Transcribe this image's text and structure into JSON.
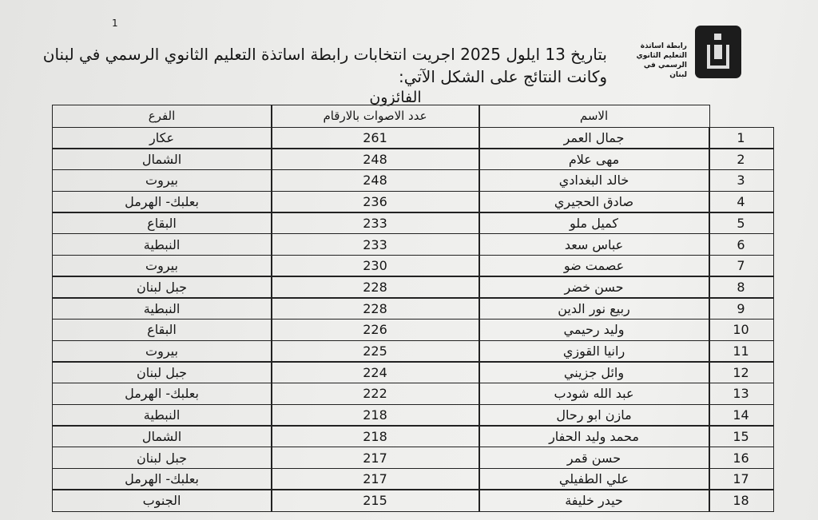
{
  "page_number": "1",
  "logo_text": [
    "رابطة اساتذة",
    "التعليم الثانوي",
    "الرسمي في لبنان"
  ],
  "heading": {
    "line1": "بتاريخ 13 ايلول 2025 اجريت انتخابات رابطة اساتذة التعليم الثانوي الرسمي في لبنان",
    "line2": "وكانت النتائج على الشكل الآتي:"
  },
  "table_title": "الفائزون",
  "table": {
    "headers": {
      "name": "الاسم",
      "votes": "عدد الاصوات بالارقام",
      "branch": "الفرع"
    },
    "rows": [
      {
        "num": "1",
        "name": "جمال العمر",
        "votes": "261",
        "branch": "عكار"
      },
      {
        "num": "2",
        "name": "مهى علام",
        "votes": "248",
        "branch": "الشمال"
      },
      {
        "num": "3",
        "name": "خالد البغدادي",
        "votes": "248",
        "branch": "بيروت"
      },
      {
        "num": "4",
        "name": "صادق الحجيري",
        "votes": "236",
        "branch": "بعلبك- الهرمل"
      },
      {
        "num": "5",
        "name": "كميل ملو",
        "votes": "233",
        "branch": "البقاع"
      },
      {
        "num": "6",
        "name": "عباس سعد",
        "votes": "233",
        "branch": "النبطية"
      },
      {
        "num": "7",
        "name": "عصمت ضو",
        "votes": "230",
        "branch": "بيروت"
      },
      {
        "num": "8",
        "name": "حسن خضر",
        "votes": "228",
        "branch": "جبل لبنان"
      },
      {
        "num": "9",
        "name": "ربيع نور الدين",
        "votes": "228",
        "branch": "النبطية"
      },
      {
        "num": "10",
        "name": "وليد رحيمي",
        "votes": "226",
        "branch": "البقاع"
      },
      {
        "num": "11",
        "name": "رانيا القوزي",
        "votes": "225",
        "branch": "بيروت"
      },
      {
        "num": "12",
        "name": "وائل جزيني",
        "votes": "224",
        "branch": "جبل لبنان"
      },
      {
        "num": "13",
        "name": "عبد الله شودب",
        "votes": "222",
        "branch": "بعلبك- الهرمل"
      },
      {
        "num": "14",
        "name": "مازن ابو رحال",
        "votes": "218",
        "branch": "النبطية"
      },
      {
        "num": "15",
        "name": "محمد وليد الحفار",
        "votes": "218",
        "branch": "الشمال"
      },
      {
        "num": "16",
        "name": "حسن قمر",
        "votes": "217",
        "branch": "جبل لبنان"
      },
      {
        "num": "17",
        "name": "علي الطفيلي",
        "votes": "217",
        "branch": "بعلبك- الهرمل"
      },
      {
        "num": "18",
        "name": "حيدر خليفة",
        "votes": "215",
        "branch": "الجنوب"
      }
    ]
  }
}
